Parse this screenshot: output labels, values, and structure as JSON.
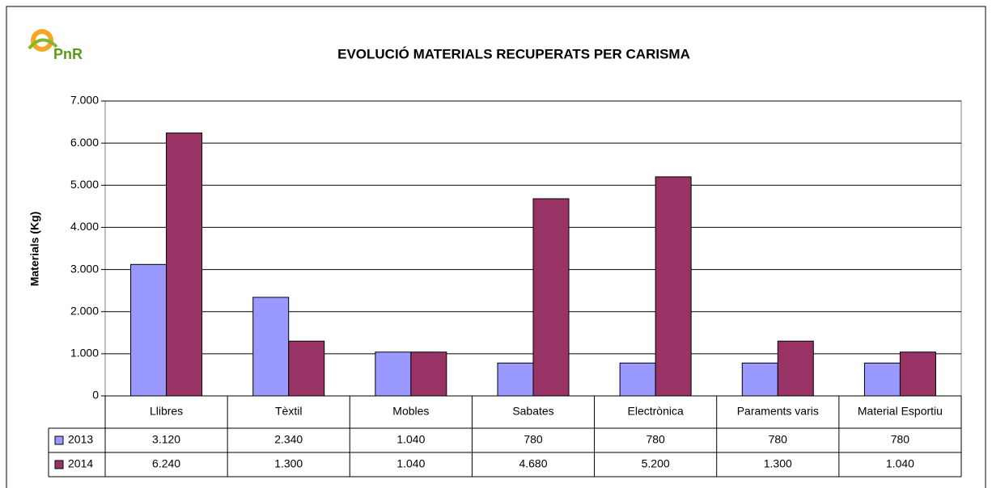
{
  "logo": "PnR",
  "chart_data": {
    "type": "bar",
    "title": "EVOLUCIÓ MATERIALS RECUPERATS PER CARISMA",
    "y_label": "Materials (Kg)",
    "categories": [
      "Llibres",
      "Tèxtil",
      "Mobles",
      "Sabates",
      "Electrònica",
      "Paraments varis",
      "Material Esportiu"
    ],
    "series": [
      {
        "name": "2013",
        "color": "#9999ff",
        "values": [
          3120,
          2340,
          1040,
          780,
          780,
          780,
          780
        ],
        "value_labels": [
          "3.120",
          "2.340",
          "1.040",
          "780",
          "780",
          "780",
          "780"
        ]
      },
      {
        "name": "2014",
        "color": "#993366",
        "values": [
          6240,
          1300,
          1040,
          4680,
          5200,
          1300,
          1040
        ],
        "value_labels": [
          "6.240",
          "1.300",
          "1.040",
          "4.680",
          "5.200",
          "1.300",
          "1.040"
        ]
      }
    ],
    "ylim": [
      0,
      7000
    ],
    "yticks": [
      0,
      {
        "value": 1000,
        "label": "1.000"
      },
      {
        "value": 2000,
        "label": "2.000"
      },
      {
        "value": 3000,
        "label": "3.000"
      },
      {
        "value": 4000,
        "label": "4.000"
      },
      {
        "value": 5000,
        "label": "5.000"
      },
      {
        "value": 6000,
        "label": "6.000"
      },
      {
        "value": 7000,
        "label": "7.000"
      }
    ],
    "grid": true
  }
}
